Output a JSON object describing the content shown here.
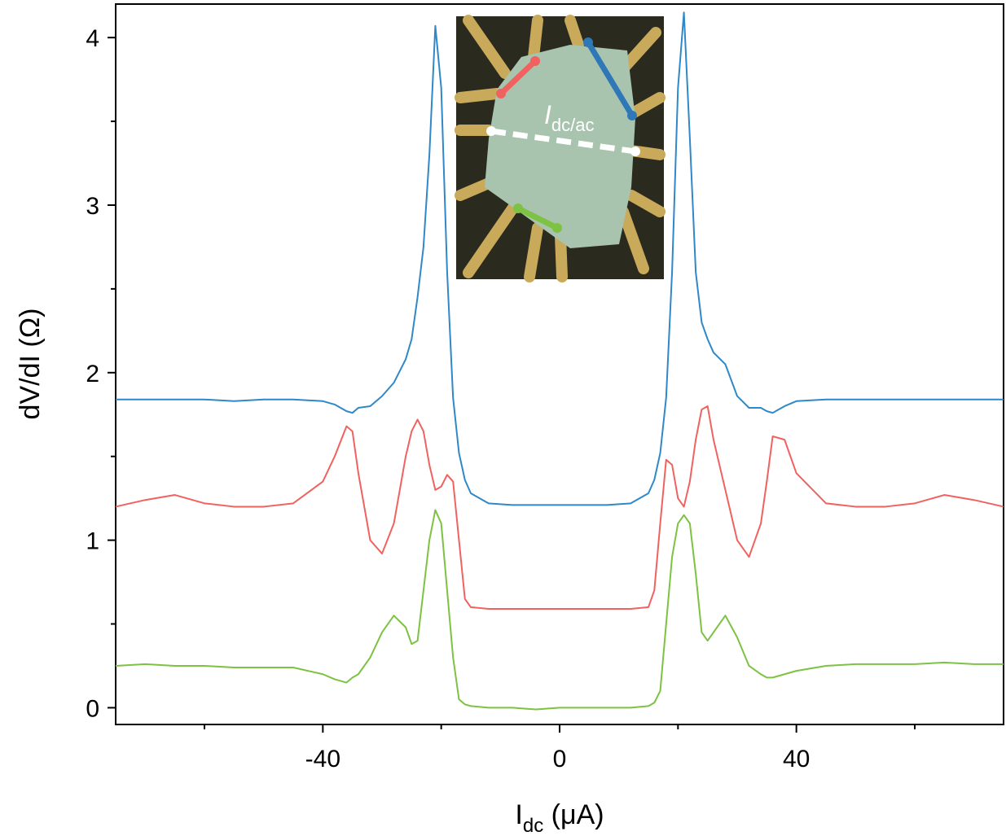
{
  "chart_data": {
    "type": "line",
    "x_label": {
      "main": "I",
      "sub": "dc",
      "unit": " (μA)"
    },
    "y_label": "dV/dI (Ω)",
    "annotation": {
      "main": "I",
      "sub": "dc/ac"
    },
    "x": [
      -75,
      -70,
      -65,
      -60,
      -55,
      -50,
      -45,
      -40,
      -38,
      -36,
      -35,
      -34,
      -32,
      -30,
      -28,
      -26,
      -25,
      -24,
      -23,
      -22,
      -21,
      -20,
      -19,
      -18,
      -17,
      -16,
      -15,
      -12,
      -8,
      -4,
      0,
      4,
      8,
      12,
      15,
      16,
      17,
      18,
      19,
      20,
      21,
      22,
      23,
      24,
      25,
      26,
      28,
      30,
      32,
      34,
      35,
      36,
      38,
      40,
      45,
      50,
      55,
      60,
      65,
      70,
      75
    ],
    "series": [
      {
        "color": "#2f88c8",
        "values": [
          1.84,
          1.84,
          1.84,
          1.84,
          1.83,
          1.84,
          1.84,
          1.83,
          1.81,
          1.77,
          1.76,
          1.79,
          1.8,
          1.86,
          1.94,
          2.08,
          2.2,
          2.45,
          2.75,
          3.3,
          4.07,
          3.7,
          2.6,
          1.85,
          1.52,
          1.36,
          1.28,
          1.22,
          1.21,
          1.21,
          1.21,
          1.21,
          1.21,
          1.22,
          1.28,
          1.36,
          1.52,
          1.85,
          2.6,
          3.7,
          4.15,
          3.4,
          2.6,
          2.3,
          2.2,
          2.12,
          2.05,
          1.86,
          1.79,
          1.79,
          1.77,
          1.76,
          1.8,
          1.83,
          1.84,
          1.84,
          1.84,
          1.84,
          1.84,
          1.84,
          1.84
        ]
      },
      {
        "color": "#f0625f",
        "values": [
          1.2,
          1.24,
          1.27,
          1.22,
          1.2,
          1.2,
          1.22,
          1.35,
          1.5,
          1.68,
          1.65,
          1.4,
          1.0,
          0.92,
          1.1,
          1.5,
          1.65,
          1.72,
          1.65,
          1.45,
          1.3,
          1.32,
          1.39,
          1.35,
          1.0,
          0.65,
          0.6,
          0.59,
          0.59,
          0.59,
          0.59,
          0.59,
          0.59,
          0.59,
          0.6,
          0.7,
          1.1,
          1.48,
          1.45,
          1.25,
          1.2,
          1.35,
          1.6,
          1.78,
          1.8,
          1.6,
          1.3,
          1.0,
          0.9,
          1.1,
          1.35,
          1.62,
          1.6,
          1.4,
          1.22,
          1.2,
          1.2,
          1.22,
          1.27,
          1.24,
          1.2
        ]
      },
      {
        "color": "#7dc242",
        "values": [
          0.25,
          0.26,
          0.25,
          0.25,
          0.24,
          0.24,
          0.24,
          0.2,
          0.17,
          0.15,
          0.18,
          0.2,
          0.3,
          0.45,
          0.55,
          0.48,
          0.38,
          0.4,
          0.7,
          1.0,
          1.18,
          1.1,
          0.7,
          0.3,
          0.05,
          0.02,
          0.01,
          0,
          0,
          -0.01,
          0,
          0,
          0,
          0,
          0.01,
          0.03,
          0.1,
          0.5,
          0.9,
          1.1,
          1.15,
          1.1,
          0.8,
          0.45,
          0.4,
          0.45,
          0.55,
          0.42,
          0.25,
          0.2,
          0.18,
          0.18,
          0.2,
          0.22,
          0.25,
          0.26,
          0.26,
          0.26,
          0.27,
          0.26,
          0.26
        ]
      }
    ],
    "xlim": [
      -75,
      75
    ],
    "xticks": [
      -40,
      0,
      40
    ],
    "xminorticks": [
      -60,
      -20,
      20,
      60
    ],
    "ylim": [
      -0.1,
      4.2
    ],
    "yticks": [
      0,
      1,
      2,
      3,
      4
    ],
    "yminorticks": [
      0.5,
      1.5,
      2.5,
      3.5
    ]
  }
}
